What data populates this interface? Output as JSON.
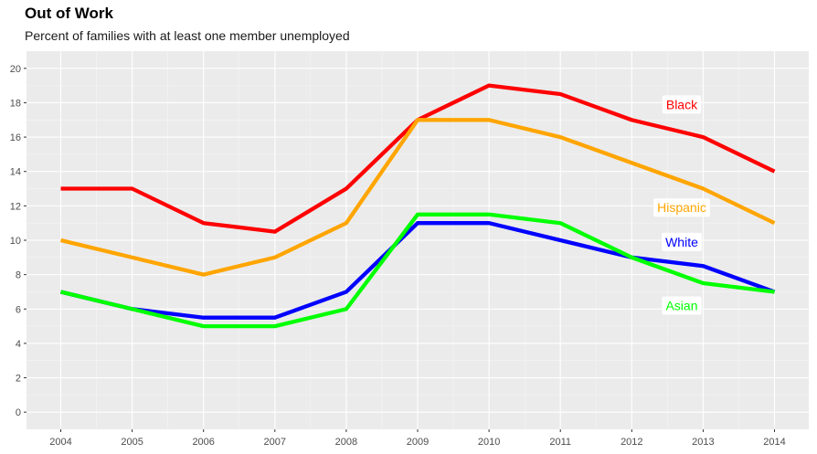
{
  "chart_data": {
    "type": "line",
    "title": "Out of Work",
    "subtitle": "Percent of families with at least one member unemployed",
    "xlabel": "",
    "ylabel": "",
    "x": [
      "2004",
      "2005",
      "2006",
      "2007",
      "2008",
      "2009",
      "2010",
      "2011",
      "2012",
      "2013",
      "2014"
    ],
    "ylim": [
      -1,
      21
    ],
    "yticks": [
      0,
      2,
      4,
      6,
      8,
      10,
      12,
      14,
      16,
      18,
      20
    ],
    "grid": true,
    "legend": "direct-labels",
    "series": [
      {
        "name": "Black",
        "color": "#ff0000",
        "values": [
          13,
          13,
          11,
          10.5,
          13,
          17,
          19,
          18.5,
          17,
          16,
          14
        ],
        "label_at": [
          2012.7,
          17.9
        ]
      },
      {
        "name": "Hispanic",
        "color": "#ffa500",
        "values": [
          10,
          9,
          8,
          9,
          11,
          17,
          17,
          16,
          14.5,
          13,
          11
        ],
        "label_at": [
          2012.7,
          11.9
        ]
      },
      {
        "name": "White",
        "color": "#0000ff",
        "values": [
          7,
          6,
          5.5,
          5.5,
          7,
          11,
          11,
          10,
          9,
          8.5,
          7
        ],
        "label_at": [
          2012.7,
          9.9
        ]
      },
      {
        "name": "Asian",
        "color": "#00ff00",
        "values": [
          7,
          6,
          5,
          5,
          6,
          11.5,
          11.5,
          11,
          9,
          7.5,
          7
        ],
        "label_at": [
          2012.7,
          6.2
        ]
      }
    ]
  }
}
